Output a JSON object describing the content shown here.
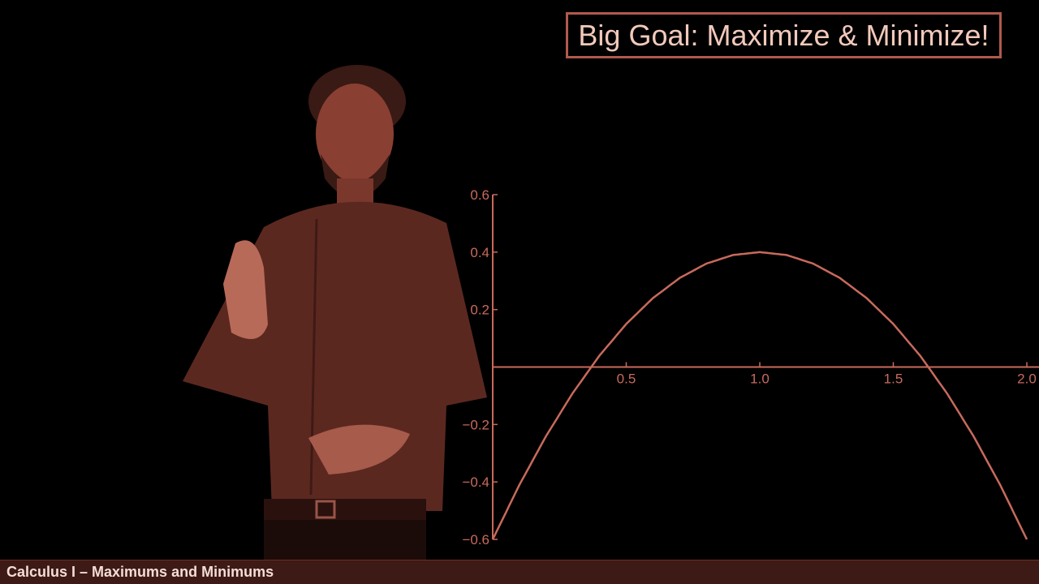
{
  "slide": {
    "title": "Big Goal: Maximize & Minimize!",
    "footer": "Calculus I – Maximums and Minimums"
  },
  "colors": {
    "background": "#000000",
    "accent": "#b05a4e",
    "curve": "#c86a5c",
    "footer_bg": "#3d1a16"
  },
  "presenter": {
    "icon": "presenter-figure"
  },
  "chart_data": {
    "type": "line",
    "xlim": [
      0,
      2.0
    ],
    "ylim": [
      -0.6,
      0.6
    ],
    "xticks": [
      0.5,
      1.0,
      1.5,
      2.0
    ],
    "xtick_labels": [
      "0.5",
      "1.0",
      "1.5",
      "2.0"
    ],
    "yticks": [
      0.6,
      0.4,
      0.2,
      -0.2,
      -0.4,
      -0.6
    ],
    "ytick_labels": [
      "0.6",
      "0.4",
      "0.2",
      "−0.2",
      "−0.4",
      "−0.6"
    ],
    "series": [
      {
        "x": [
          0,
          0.1,
          0.2,
          0.3,
          0.4,
          0.5,
          0.6,
          0.7,
          0.8,
          0.9,
          1.0,
          1.1,
          1.2,
          1.3,
          1.4,
          1.5,
          1.6,
          1.7,
          1.8,
          1.9,
          2.0
        ],
        "y": [
          -0.6,
          -0.41,
          -0.24,
          -0.09,
          0.04,
          0.15,
          0.24,
          0.31,
          0.36,
          0.39,
          0.4,
          0.39,
          0.36,
          0.31,
          0.24,
          0.15,
          0.04,
          -0.09,
          -0.24,
          -0.41,
          -0.6
        ]
      }
    ]
  }
}
